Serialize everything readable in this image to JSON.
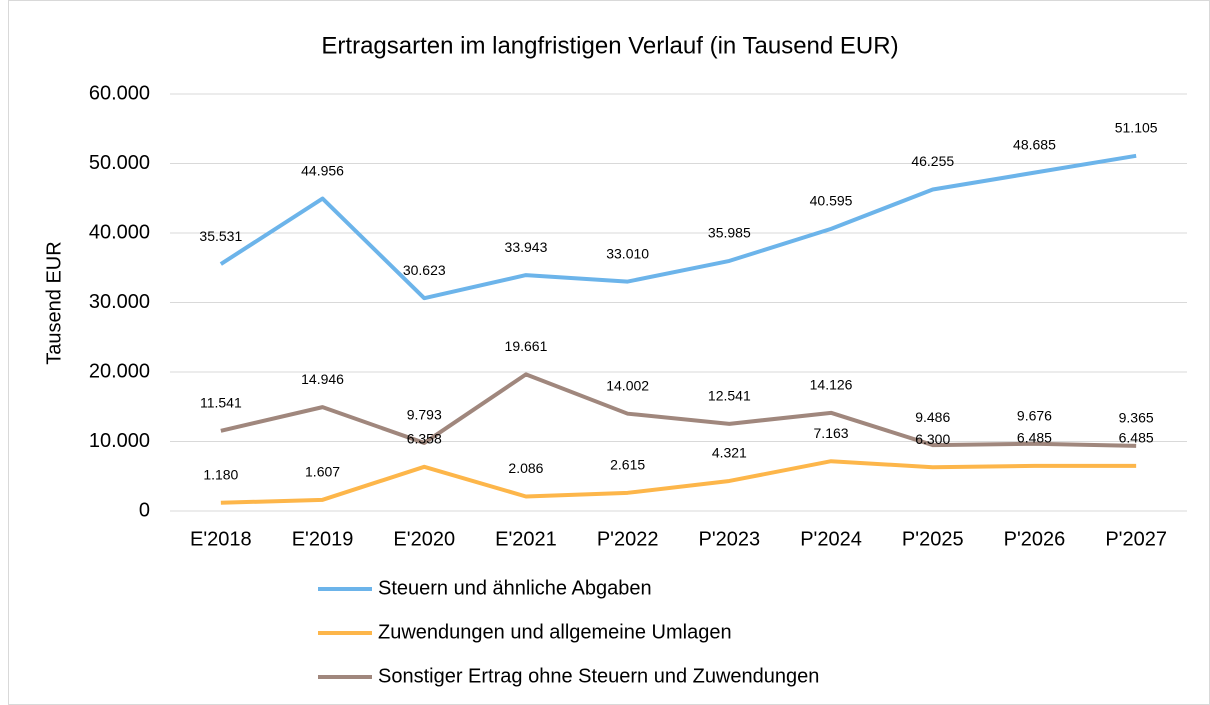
{
  "chart_data": {
    "type": "line",
    "title": "Ertragsarten im langfristigen Verlauf (in Tausend EUR)",
    "y_label": "Tausend EUR",
    "categories": [
      "E'2018",
      "E'2019",
      "E'2020",
      "E'2021",
      "P'2022",
      "P'2023",
      "P'2024",
      "P'2025",
      "P'2026",
      "P'2027"
    ],
    "series": [
      {
        "name": "Steuern und ähnliche Abgaben",
        "color": "#6cb4ea",
        "values": [
          35531,
          44956,
          30623,
          33943,
          33010,
          35985,
          40595,
          46255,
          48685,
          51105
        ],
        "value_labels": [
          "35.531",
          "44.956",
          "30.623",
          "33.943",
          "33.010",
          "35.985",
          "40.595",
          "46.255",
          "48.685",
          "51.105"
        ]
      },
      {
        "name": "Zuwendungen und allgemeine Umlagen",
        "color": "#fdb64a",
        "values": [
          1180,
          1607,
          6358,
          2086,
          2615,
          4321,
          7163,
          6300,
          6485,
          6485
        ],
        "value_labels": [
          "1.180",
          "1.607",
          "6.358",
          "2.086",
          "2.615",
          "4.321",
          "7.163",
          "6.300",
          "6.485",
          "6.485"
        ]
      },
      {
        "name": "Sonstiger Ertrag ohne Steuern und Zuwendungen",
        "color": "#a0877d",
        "values": [
          11541,
          14946,
          9793,
          19661,
          14002,
          12541,
          14126,
          9486,
          9676,
          9365
        ],
        "value_labels": [
          "11.541",
          "14.946",
          "9.793",
          "19.661",
          "14.002",
          "12.541",
          "14.126",
          "9.486",
          "9.676",
          "9.365"
        ]
      }
    ],
    "ylim": [
      0,
      60000
    ],
    "yticks": [
      0,
      {
        "value": 10000,
        "label": "10.000"
      },
      {
        "value": 20000,
        "label": "20.000"
      },
      {
        "value": 30000,
        "label": "30.000"
      },
      {
        "value": 40000,
        "label": "40.000"
      },
      {
        "value": 50000,
        "label": "50.000"
      },
      {
        "value": 60000,
        "label": "60.000"
      }
    ],
    "grid": true,
    "legend": "bottom"
  }
}
